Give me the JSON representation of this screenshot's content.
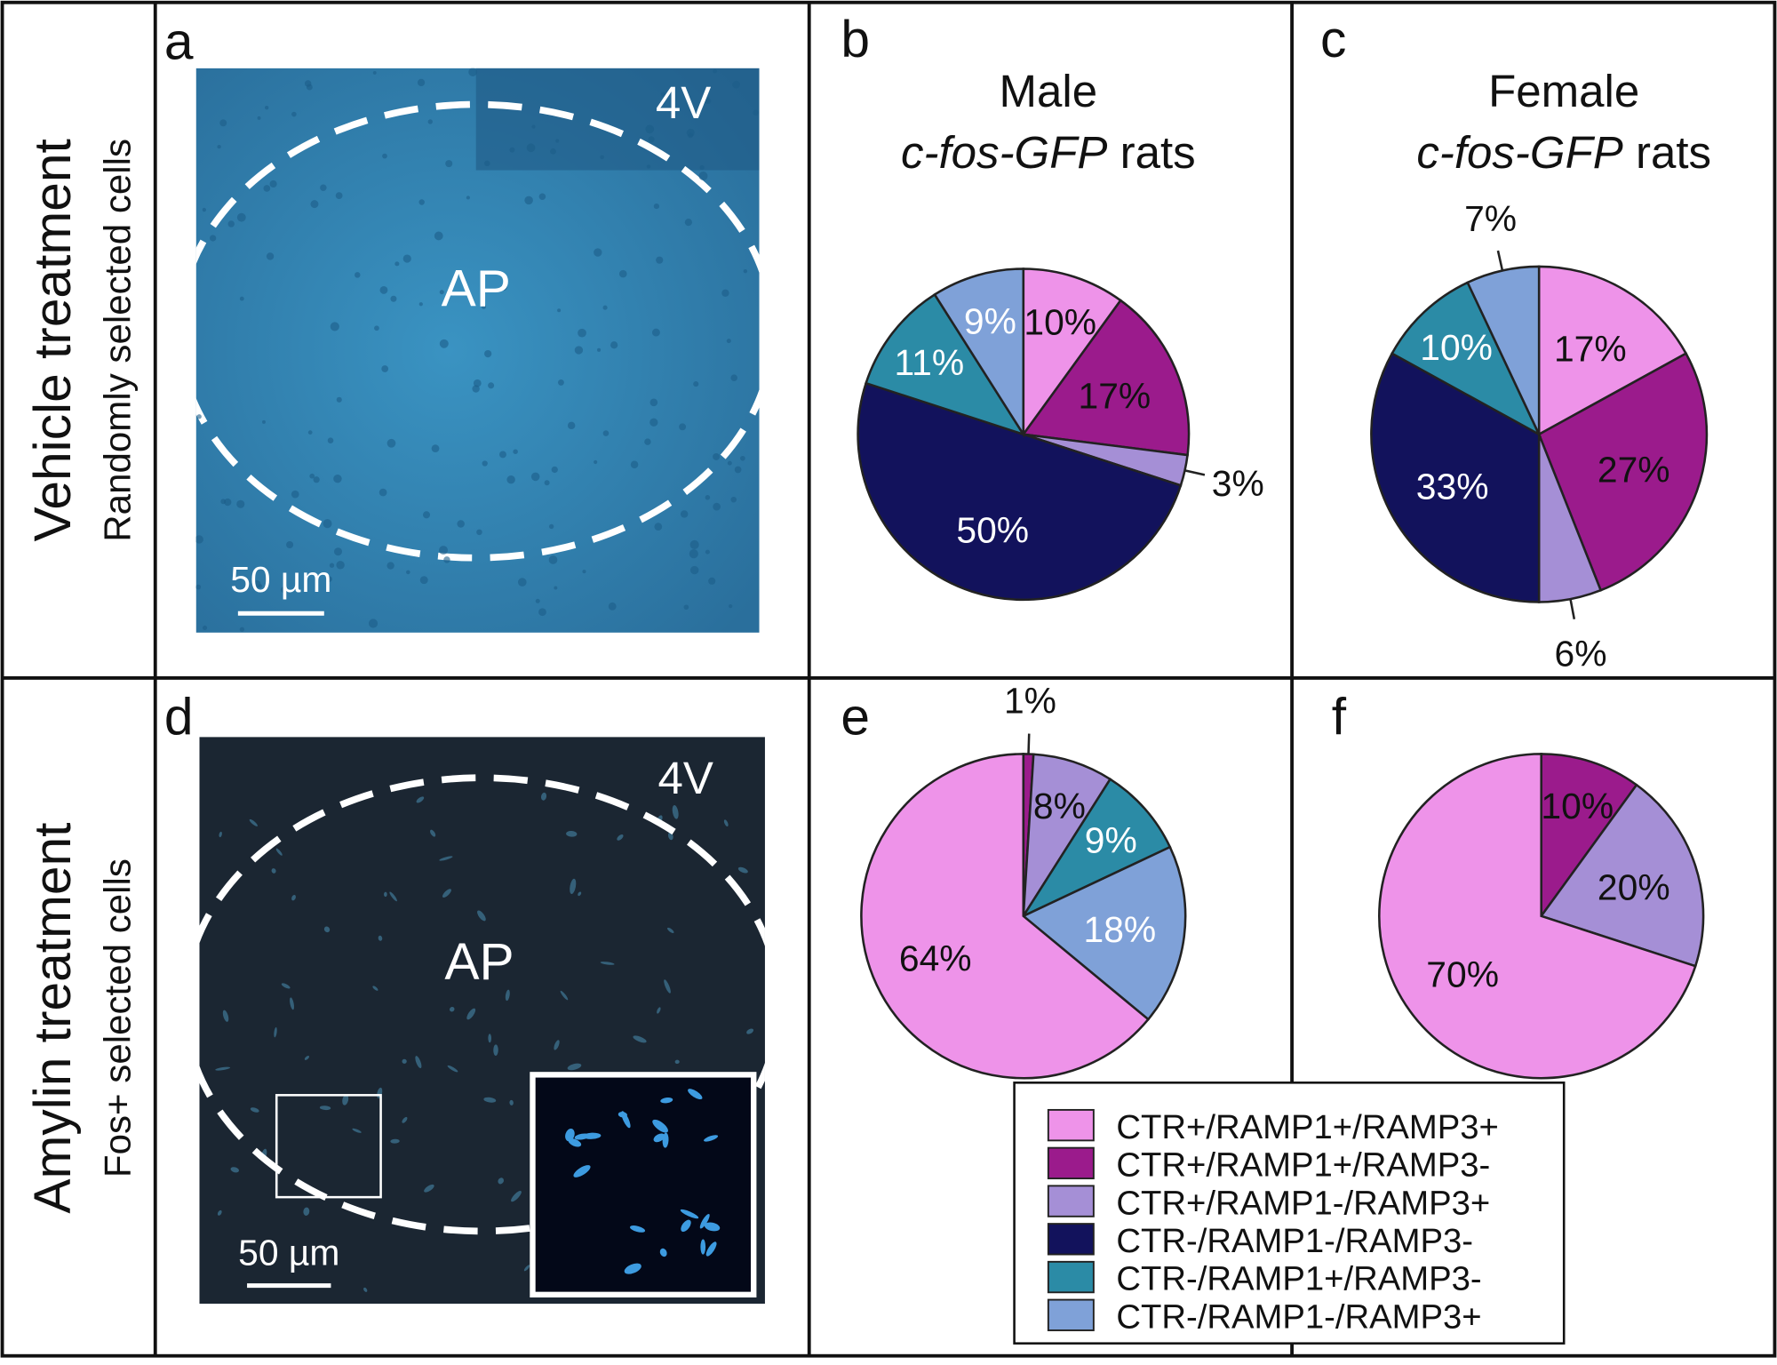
{
  "rows": [
    {
      "title": "Vehicle treatment",
      "subtitle": "Randomly selected cells"
    },
    {
      "title": "Amylin treatment",
      "subtitle": "Fos+ selected cells"
    }
  ],
  "images": [
    {
      "panel": "a",
      "ventricle": "4V",
      "region": "AP",
      "scale_bar": "50 µm"
    },
    {
      "panel": "d",
      "ventricle": "4V",
      "region": "AP",
      "scale_bar": "50 µm"
    }
  ],
  "legend": {
    "entries": [
      {
        "name": "CTR+/RAMP1+/RAMP3+",
        "color": "#ee93e9"
      },
      {
        "name": "CTR+/RAMP1+/RAMP3-",
        "color": "#9b1b8c"
      },
      {
        "name": "CTR+/RAMP1-/RAMP3+",
        "color": "#a58fd6"
      },
      {
        "name": "CTR-/RAMP1-/RAMP3-",
        "color": "#12125c"
      },
      {
        "name": "CTR-/RAMP1+/RAMP3-",
        "color": "#2b8ba6"
      },
      {
        "name": "CTR-/RAMP1-/RAMP3+",
        "color": "#7fa1d8"
      }
    ]
  },
  "chart_data": [
    {
      "type": "pie",
      "panel": "b",
      "title": "Male",
      "subtitle_italic": "c-fos-GFP",
      "subtitle": "rats",
      "values": [
        10,
        17,
        3,
        50,
        11,
        9
      ],
      "value_labels": [
        "10%",
        "17%",
        "3%",
        "50%",
        "11%",
        "9%"
      ],
      "colors": [
        "#ee93e9",
        "#9b1b8c",
        "#a58fd6",
        "#12125c",
        "#2b8ba6",
        "#7fa1d8"
      ],
      "label_colors": [
        "#111111",
        "#111111",
        "#111111",
        "#ffffff",
        "#ffffff",
        "#ffffff"
      ]
    },
    {
      "type": "pie",
      "panel": "c",
      "title": "Female",
      "subtitle_italic": "c-fos-GFP",
      "subtitle": "rats",
      "values": [
        17,
        27,
        6,
        33,
        10,
        7
      ],
      "value_labels": [
        "17%",
        "27%",
        "6%",
        "33%",
        "10%",
        "7%"
      ],
      "colors": [
        "#ee93e9",
        "#9b1b8c",
        "#a58fd6",
        "#12125c",
        "#2b8ba6",
        "#7fa1d8"
      ],
      "label_colors": [
        "#111111",
        "#111111",
        "#111111",
        "#ffffff",
        "#ffffff",
        "#111111"
      ]
    },
    {
      "type": "pie",
      "panel": "e",
      "values": [
        1,
        8,
        9,
        18,
        64
      ],
      "value_labels": [
        "1%",
        "8%",
        "9%",
        "18%",
        "64%"
      ],
      "colors": [
        "#9b1b8c",
        "#a58fd6",
        "#2b8ba6",
        "#7fa1d8",
        "#ee93e9"
      ],
      "label_colors": [
        "#111111",
        "#111111",
        "#ffffff",
        "#ffffff",
        "#111111"
      ]
    },
    {
      "type": "pie",
      "panel": "f",
      "values": [
        10,
        20,
        70
      ],
      "value_labels": [
        "10%",
        "20%",
        "70%"
      ],
      "colors": [
        "#9b1b8c",
        "#a58fd6",
        "#ee93e9"
      ],
      "label_colors": [
        "#111111",
        "#111111",
        "#111111"
      ]
    }
  ]
}
